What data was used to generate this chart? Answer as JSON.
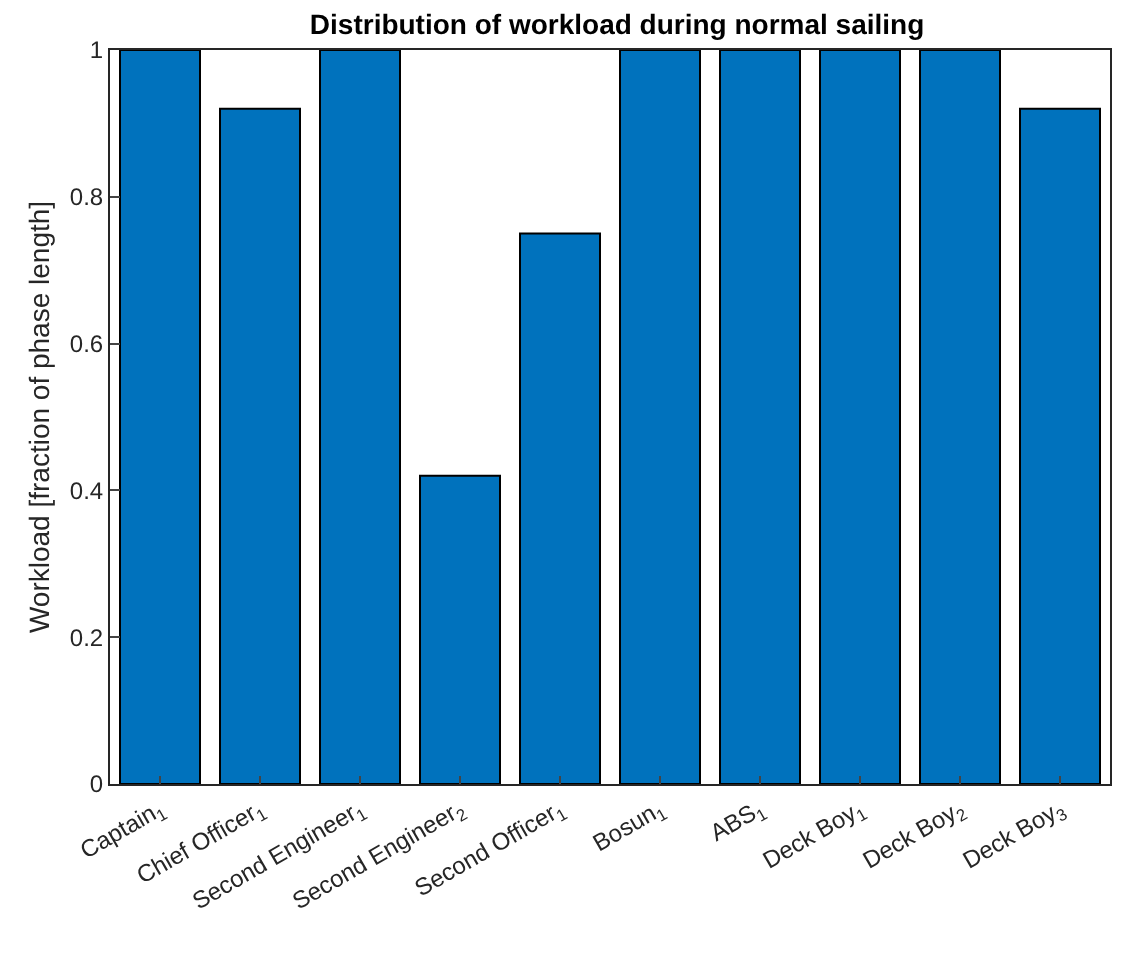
{
  "chart_data": {
    "type": "bar",
    "title": "Distribution of workload during normal sailing",
    "ylabel": "Workload [fraction of phase length]",
    "categories": [
      "Captain$_{1}$",
      "Chief Officer$_{1}$",
      "Second Engineer$_{1}$",
      "Second Engineer$_{2}$",
      "Second Officer$_{1}$",
      "Bosun$_{1}$",
      "ABS$_{1}$",
      "Deck Boy$_{1}$",
      "Deck Boy$_{2}$",
      "Deck Boy$_{3}$"
    ],
    "values": [
      1,
      0.92,
      1,
      0.42,
      0.75,
      1,
      1,
      1,
      1,
      0.92
    ],
    "color": "#0072bd",
    "ylim": [
      0,
      1
    ],
    "yticks": [
      0,
      0.2,
      0.4,
      0.6,
      0.8,
      1
    ]
  }
}
